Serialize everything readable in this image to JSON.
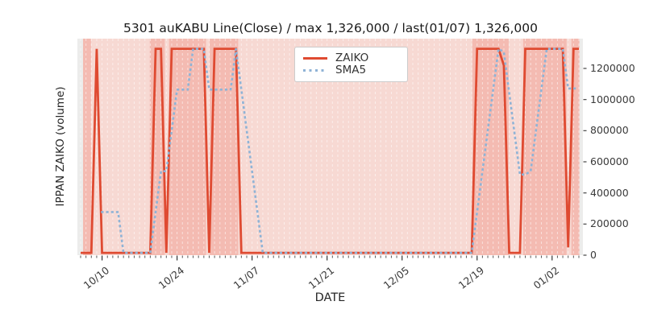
{
  "title": "5301 auKABU Line(Close) / max 1,326,000 / last(01/07) 1,326,000",
  "axes": {
    "xlabel": "DATE",
    "ylabel": "IPPAN ZAIKO (volume)"
  },
  "legend": [
    {
      "label": "ZAIKO",
      "style": "solid"
    },
    {
      "label": "SMA5",
      "style": "dotted"
    }
  ],
  "colors": {
    "zaiko": "#df4a31",
    "sma5": "#8fb3d6",
    "band_light": "#f7d9d3",
    "band_dark": "#f4bbb2",
    "plot_bg": "#ececeb",
    "grid": "rgba(255,255,255,0.55)",
    "tick": "#444444",
    "tick_text": "#3a3a3a",
    "legend_border": "#cccccc"
  },
  "plot": {
    "x_major_days": [
      4,
      18,
      32,
      46,
      60,
      74,
      88
    ],
    "x_tick_labels": [
      "10/10",
      "10/24",
      "11/07",
      "11/21",
      "12/05",
      "12/19",
      "01/02"
    ],
    "y_ticks": [
      {
        "value": 0,
        "label": "0"
      },
      {
        "value": 200000,
        "label": "200000"
      },
      {
        "value": 400000,
        "label": "400000"
      },
      {
        "value": 600000,
        "label": "600000"
      },
      {
        "value": 800000,
        "label": "800000"
      },
      {
        "value": 1000000,
        "label": "1000000"
      },
      {
        "value": 1200000,
        "label": "1200000"
      }
    ],
    "bands": [
      {
        "from": 0.45,
        "to": 93.1,
        "level": "light"
      },
      {
        "from": 0.45,
        "to": 1.95,
        "level": "dark"
      },
      {
        "from": 12.9,
        "to": 15.7,
        "level": "dark"
      },
      {
        "from": 16.5,
        "to": 23.4,
        "level": "dark"
      },
      {
        "from": 24.1,
        "to": 29.4,
        "level": "dark"
      },
      {
        "from": 73.1,
        "to": 79.9,
        "level": "dark"
      },
      {
        "from": 82.6,
        "to": 90.7,
        "level": "dark"
      },
      {
        "from": 91.6,
        "to": 93.1,
        "level": "dark"
      }
    ]
  },
  "chart_data": {
    "type": "line",
    "title": "5301 auKABU Line(Close) / max 1,326,000 / last(01/07) 1,326,000",
    "xlabel": "DATE",
    "ylabel": "IPPAN ZAIKO (volume)",
    "ylim": [
      0,
      1391000
    ],
    "grid": "white dashed vertical line per day",
    "legend_position": "upper center",
    "max_value": 1326000,
    "last_date": "01/07",
    "last_value": 1326000,
    "x": [
      "10/06",
      "10/07",
      "10/08",
      "10/09",
      "10/10",
      "10/11",
      "10/12",
      "10/13",
      "10/14",
      "10/15",
      "10/16",
      "10/17",
      "10/18",
      "10/19",
      "10/20",
      "10/21",
      "10/22",
      "10/23",
      "10/24",
      "10/25",
      "10/26",
      "10/27",
      "10/28",
      "10/29",
      "10/30",
      "10/31",
      "11/01",
      "11/02",
      "11/03",
      "11/04",
      "11/05",
      "11/06",
      "11/07",
      "11/08",
      "11/09",
      "11/10",
      "11/11",
      "11/12",
      "11/13",
      "11/14",
      "11/15",
      "11/16",
      "11/17",
      "11/18",
      "11/19",
      "11/20",
      "11/21",
      "11/22",
      "11/23",
      "11/24",
      "11/25",
      "11/26",
      "11/27",
      "11/28",
      "11/29",
      "11/30",
      "12/01",
      "12/02",
      "12/03",
      "12/04",
      "12/05",
      "12/06",
      "12/07",
      "12/08",
      "12/09",
      "12/10",
      "12/11",
      "12/12",
      "12/13",
      "12/14",
      "12/15",
      "12/16",
      "12/17",
      "12/18",
      "12/19",
      "12/20",
      "12/21",
      "12/22",
      "12/23",
      "12/24",
      "12/25",
      "12/26",
      "12/27",
      "12/28",
      "12/29",
      "12/30",
      "12/31",
      "01/01",
      "01/02",
      "01/03",
      "01/04",
      "01/05",
      "01/06",
      "01/07"
    ],
    "series": [
      {
        "name": "ZAIKO",
        "values": [
          15000,
          15000,
          15000,
          1326000,
          15000,
          15000,
          15000,
          15000,
          15000,
          15000,
          15000,
          15000,
          15000,
          15000,
          1326000,
          1326000,
          15000,
          1326000,
          1326000,
          1326000,
          1326000,
          1326000,
          1326000,
          1326000,
          15000,
          1326000,
          1326000,
          1326000,
          1326000,
          1326000,
          15000,
          15000,
          15000,
          15000,
          15000,
          15000,
          15000,
          15000,
          15000,
          15000,
          15000,
          15000,
          15000,
          15000,
          15000,
          15000,
          15000,
          15000,
          15000,
          15000,
          15000,
          15000,
          15000,
          15000,
          15000,
          15000,
          15000,
          15000,
          15000,
          15000,
          15000,
          15000,
          15000,
          15000,
          15000,
          15000,
          15000,
          15000,
          15000,
          15000,
          15000,
          15000,
          15000,
          15000,
          1326000,
          1326000,
          1326000,
          1326000,
          1326000,
          1220000,
          15000,
          15000,
          15000,
          1326000,
          1326000,
          1326000,
          1326000,
          1326000,
          1326000,
          1326000,
          1326000,
          50000,
          1326000,
          1326000
        ]
      },
      {
        "name": "SMA5",
        "derived": "5-day moving average of ZAIKO",
        "values": [
          null,
          null,
          null,
          null,
          277200,
          277200,
          277200,
          277200,
          15000,
          15000,
          15000,
          15000,
          15000,
          15000,
          277200,
          539400,
          539400,
          801600,
          1063800,
          1063800,
          1063800,
          1326000,
          1326000,
          1326000,
          1063800,
          1063800,
          1063800,
          1063800,
          1063800,
          1326000,
          1063800,
          801600,
          539400,
          277200,
          15000,
          15000,
          15000,
          15000,
          15000,
          15000,
          15000,
          15000,
          15000,
          15000,
          15000,
          15000,
          15000,
          15000,
          15000,
          15000,
          15000,
          15000,
          15000,
          15000,
          15000,
          15000,
          15000,
          15000,
          15000,
          15000,
          15000,
          15000,
          15000,
          15000,
          15000,
          15000,
          15000,
          15000,
          15000,
          15000,
          15000,
          15000,
          15000,
          15000,
          277200,
          539400,
          801600,
          1063800,
          1326000,
          1304800,
          1042600,
          780400,
          518200,
          518200,
          539400,
          801600,
          1063800,
          1326000,
          1326000,
          1326000,
          1326000,
          1070800,
          1070800,
          1070800
        ]
      }
    ]
  }
}
